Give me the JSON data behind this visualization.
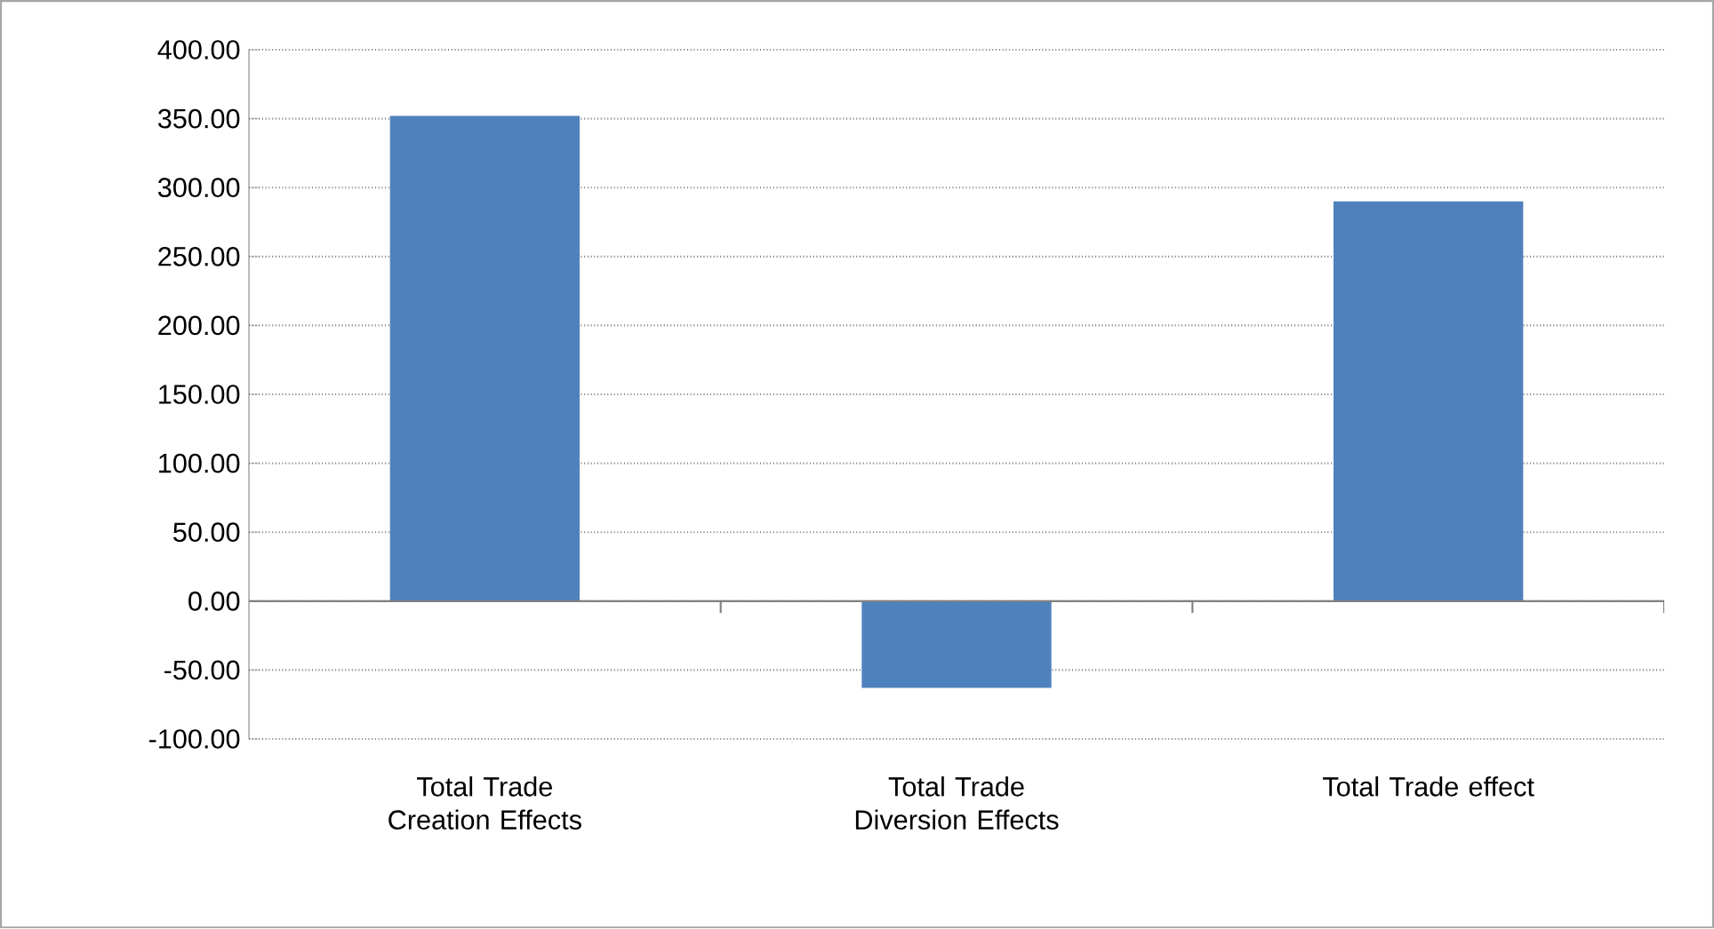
{
  "chart_data": {
    "type": "bar",
    "categories": [
      "Total Trade Creation Effects",
      "Total Trade Diversion Effects",
      "Total Trade effect"
    ],
    "values": [
      352,
      -63,
      290
    ],
    "color": "#4f81bd",
    "ylim": [
      -100,
      400
    ],
    "yticks": [
      {
        "value": -100,
        "label": "-100.00"
      },
      {
        "value": -50,
        "label": "-50.00"
      },
      {
        "value": 0,
        "label": "0.00"
      },
      {
        "value": 50,
        "label": "50.00"
      },
      {
        "value": 100,
        "label": "100.00"
      },
      {
        "value": 150,
        "label": "150.00"
      },
      {
        "value": 200,
        "label": "200.00"
      },
      {
        "value": 250,
        "label": "250.00"
      },
      {
        "value": 300,
        "label": "300.00"
      },
      {
        "value": 350,
        "label": "350.00"
      },
      {
        "value": 400,
        "label": "400.00"
      }
    ],
    "grid": "y"
  }
}
